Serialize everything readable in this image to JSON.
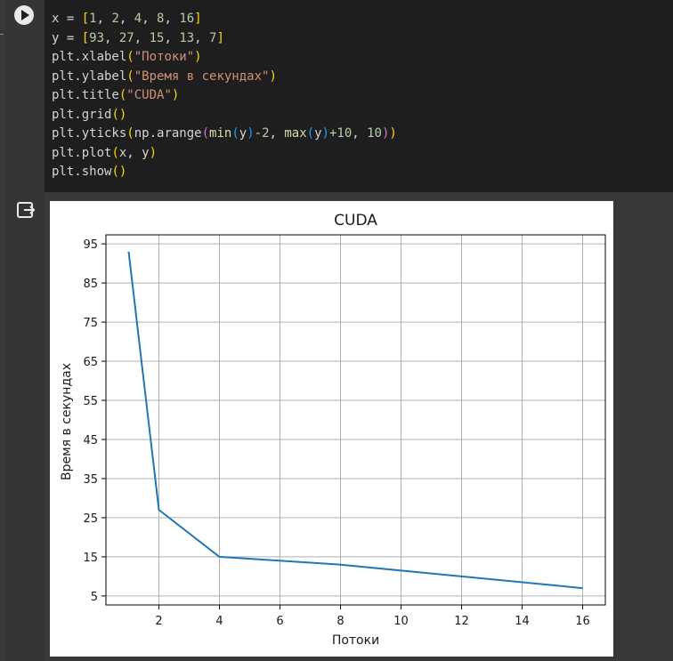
{
  "cell": {
    "run_button_label": "Run cell",
    "code_lines": [
      [
        [
          "x = ",
          ""
        ],
        [
          "[",
          "p1"
        ],
        [
          "1",
          "num"
        ],
        [
          ", ",
          ""
        ],
        [
          "2",
          "num"
        ],
        [
          ", ",
          ""
        ],
        [
          "4",
          "num"
        ],
        [
          ", ",
          ""
        ],
        [
          "8",
          "num"
        ],
        [
          ", ",
          ""
        ],
        [
          "16",
          "num"
        ],
        [
          "]",
          "p1"
        ]
      ],
      [
        [
          "y = ",
          ""
        ],
        [
          "[",
          "p1"
        ],
        [
          "93",
          "num"
        ],
        [
          ", ",
          ""
        ],
        [
          "27",
          "num"
        ],
        [
          ", ",
          ""
        ],
        [
          "15",
          "num"
        ],
        [
          ", ",
          ""
        ],
        [
          "13",
          "num"
        ],
        [
          ", ",
          ""
        ],
        [
          "7",
          "num"
        ],
        [
          "]",
          "p1"
        ]
      ],
      [
        [
          "plt.xlabel",
          ""
        ],
        [
          "(",
          "p1"
        ],
        [
          "\"Потоки\"",
          "str"
        ],
        [
          ")",
          "p1"
        ]
      ],
      [
        [
          "plt.ylabel",
          ""
        ],
        [
          "(",
          "p1"
        ],
        [
          "\"Время в секундах\"",
          "str"
        ],
        [
          ")",
          "p1"
        ]
      ],
      [
        [
          "plt.title",
          ""
        ],
        [
          "(",
          "p1"
        ],
        [
          "\"CUDA\"",
          "str"
        ],
        [
          ")",
          "p1"
        ]
      ],
      [
        [
          "plt.grid",
          ""
        ],
        [
          "()",
          "p1"
        ]
      ],
      [
        [
          "plt.yticks",
          ""
        ],
        [
          "(",
          "p1"
        ],
        [
          "np.arange",
          ""
        ],
        [
          "(",
          "p2"
        ],
        [
          "min",
          "fn"
        ],
        [
          "(",
          "p3"
        ],
        [
          "y",
          ""
        ],
        [
          ")",
          "p3"
        ],
        [
          "-2",
          "num"
        ],
        [
          ", ",
          ""
        ],
        [
          "max",
          "fn"
        ],
        [
          "(",
          "p3"
        ],
        [
          "y",
          ""
        ],
        [
          ")",
          "p3"
        ],
        [
          "+10",
          "num"
        ],
        [
          ", ",
          ""
        ],
        [
          "10",
          "num"
        ],
        [
          ")",
          "p2"
        ],
        [
          ")",
          "p1"
        ]
      ],
      [
        [
          "plt.plot",
          ""
        ],
        [
          "(",
          "p1"
        ],
        [
          "x, y",
          ""
        ],
        [
          ")",
          "p1"
        ]
      ],
      [
        [
          "plt.show",
          ""
        ],
        [
          "()",
          "p1"
        ]
      ]
    ]
  },
  "output": {
    "icon": "output-toggle-icon"
  },
  "chart_data": {
    "type": "line",
    "title": "CUDA",
    "xlabel": "Потоки",
    "ylabel": "Время в секундах",
    "x": [
      1,
      2,
      4,
      8,
      16
    ],
    "series": [
      {
        "values": [
          93,
          27,
          15,
          13,
          7
        ],
        "color": "#1f77b4"
      }
    ],
    "xticks": [
      2,
      4,
      6,
      8,
      10,
      12,
      14,
      16
    ],
    "yticks": [
      5,
      15,
      25,
      35,
      45,
      55,
      65,
      75,
      85,
      95
    ],
    "xlim": [
      0.25,
      16.75
    ],
    "ylim": [
      2.7,
      97.3
    ],
    "grid": true,
    "legend": "none"
  }
}
